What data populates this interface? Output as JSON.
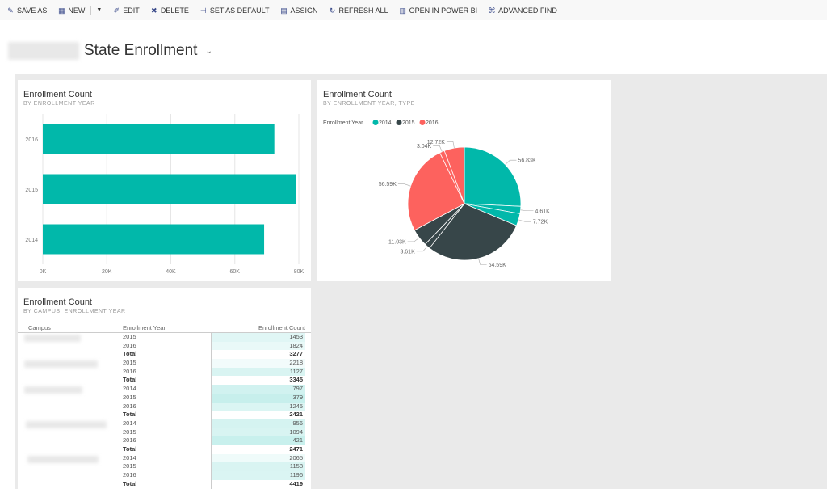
{
  "toolbar": {
    "items": [
      {
        "label": "SAVE AS",
        "icon": "save-as-icon"
      },
      {
        "label": "NEW",
        "icon": "new-icon"
      },
      {
        "label": "EDIT",
        "icon": "edit-icon"
      },
      {
        "label": "DELETE",
        "icon": "delete-icon"
      },
      {
        "label": "SET AS DEFAULT",
        "icon": "pin-icon"
      },
      {
        "label": "ASSIGN",
        "icon": "assign-icon"
      },
      {
        "label": "REFRESH ALL",
        "icon": "refresh-icon"
      },
      {
        "label": "OPEN IN POWER BI",
        "icon": "powerbi-icon"
      },
      {
        "label": "ADVANCED FIND",
        "icon": "binoculars-icon"
      }
    ]
  },
  "header": {
    "title": "State Enrollment"
  },
  "colors": {
    "2014": "#01b8aa",
    "2015": "#374649",
    "2016": "#fd625e"
  },
  "chart_data": [
    {
      "type": "bar",
      "orientation": "horizontal",
      "title": "Enrollment Count",
      "subtitle": "BY ENROLLMENT YEAR",
      "categories": [
        "2016",
        "2015",
        "2014"
      ],
      "values": [
        72350,
        79230,
        69160
      ],
      "xlim": [
        0,
        80000
      ],
      "xticks": [
        "0K",
        "20K",
        "40K",
        "60K",
        "80K"
      ],
      "grid": true,
      "color": "#01b8aa"
    },
    {
      "type": "pie",
      "title": "Enrollment Count",
      "subtitle": "BY ENROLLMENT YEAR, TYPE",
      "legend_title": "Enrollment Year",
      "legend": [
        "2014",
        "2015",
        "2016"
      ],
      "legend_placement": "top-left",
      "slices": [
        {
          "year": "2014",
          "value": 56.83,
          "label": "56.83K"
        },
        {
          "year": "2014",
          "value": 4.61,
          "label": "4.61K"
        },
        {
          "year": "2014",
          "value": 7.72,
          "label": "7.72K"
        },
        {
          "year": "2015",
          "value": 64.59,
          "label": "64.59K"
        },
        {
          "year": "2015",
          "value": 3.61,
          "label": "3.61K"
        },
        {
          "year": "2015",
          "value": 11.03,
          "label": "11.03K"
        },
        {
          "year": "2016",
          "value": 56.59,
          "label": "56.59K"
        },
        {
          "year": "2016",
          "value": 3.04,
          "label": "3.04K"
        },
        {
          "year": "2016",
          "value": 12.72,
          "label": "12.72K"
        }
      ]
    },
    {
      "type": "table",
      "title": "Enrollment Count",
      "subtitle": "BY CAMPUS, ENROLLMENT YEAR",
      "columns": [
        "Campus",
        "Enrollment Year",
        "Enrollment Count"
      ],
      "rows": [
        {
          "year": "2015",
          "count": "1453"
        },
        {
          "year": "2016",
          "count": "1824"
        },
        {
          "year": "Total",
          "count": "3277",
          "total": true
        },
        {
          "year": "2015",
          "count": "2218"
        },
        {
          "year": "2016",
          "count": "1127"
        },
        {
          "year": "Total",
          "count": "3345",
          "total": true
        },
        {
          "year": "2014",
          "count": "797"
        },
        {
          "year": "2015",
          "count": "379"
        },
        {
          "year": "2016",
          "count": "1245"
        },
        {
          "year": "Total",
          "count": "2421",
          "total": true
        },
        {
          "year": "2014",
          "count": "956"
        },
        {
          "year": "2015",
          "count": "1094"
        },
        {
          "year": "2016",
          "count": "421"
        },
        {
          "year": "Total",
          "count": "2471",
          "total": true
        },
        {
          "year": "2014",
          "count": "2065"
        },
        {
          "year": "2015",
          "count": "1158"
        },
        {
          "year": "2016",
          "count": "1196"
        },
        {
          "year": "Total",
          "count": "4419",
          "total": true
        }
      ]
    }
  ]
}
